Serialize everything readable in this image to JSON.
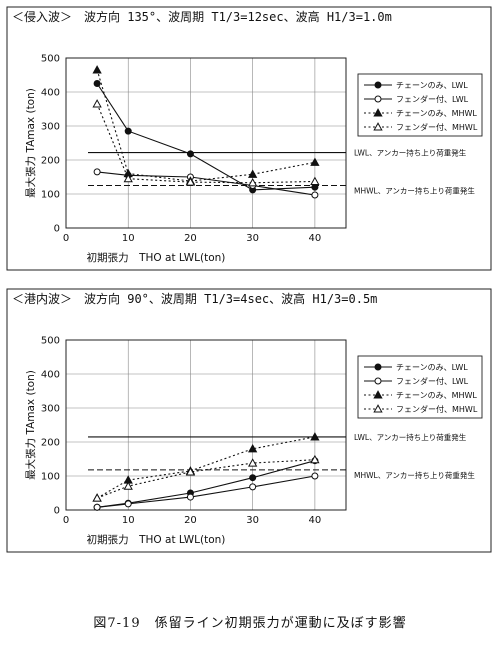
{
  "caption": "図7-19　係留ライン初期張力が運動に及ぼす影響",
  "chart_data": [
    {
      "type": "line",
      "header": "＜侵入波＞　波方向 135°、波周期 T1/3=12sec、波高 H1/3=1.0m",
      "xlabel": "初期張力　THO at LWL(ton)",
      "ylabel": "最大張力 TAmax (ton)",
      "xlim": [
        0,
        45
      ],
      "ylim": [
        0,
        500
      ],
      "xticks": [
        0,
        10,
        20,
        30,
        40
      ],
      "yticks": [
        0,
        100,
        200,
        300,
        400,
        500
      ],
      "grid": true,
      "legend_position": "top-right",
      "series": [
        {
          "name": "チェーンのみ、LWL",
          "style": "solid",
          "marker": "filled-circle",
          "x": [
            5,
            10,
            20,
            30,
            40
          ],
          "y": [
            425,
            285,
            218,
            112,
            120
          ]
        },
        {
          "name": "フェンダー付、LWL",
          "style": "solid",
          "marker": "open-circle",
          "x": [
            5,
            10,
            20,
            30,
            40
          ],
          "y": [
            165,
            155,
            150,
            125,
            97
          ]
        },
        {
          "name": "チェーンのみ、MHWL",
          "style": "dotted",
          "marker": "filled-triangle",
          "x": [
            5,
            10,
            20,
            30,
            40
          ],
          "y": [
            465,
            160,
            138,
            158,
            193
          ]
        },
        {
          "name": "フェンダー付、MHWL",
          "style": "dotted",
          "marker": "open-triangle",
          "x": [
            5,
            10,
            20,
            30,
            40
          ],
          "y": [
            365,
            145,
            135,
            133,
            137
          ]
        }
      ],
      "reference_lines": [
        {
          "label": "LWL、アンカー持ち上り荷重発生",
          "y": 222,
          "style": "solid"
        },
        {
          "label": "MHWL、アンカー持ち上り荷重発生",
          "y": 125,
          "style": "dashed"
        }
      ]
    },
    {
      "type": "line",
      "header": "＜港内波＞　波方向 90°、波周期 T1/3=4sec、波高 H1/3=0.5m",
      "xlabel": "初期張力　THO at LWL(ton)",
      "ylabel": "最大張力 TAmax (ton)",
      "xlim": [
        0,
        45
      ],
      "ylim": [
        0,
        500
      ],
      "xticks": [
        0,
        10,
        20,
        30,
        40
      ],
      "yticks": [
        0,
        100,
        200,
        300,
        400,
        500
      ],
      "grid": true,
      "legend_position": "top-right",
      "series": [
        {
          "name": "チェーンのみ、LWL",
          "style": "solid",
          "marker": "filled-circle",
          "x": [
            5,
            10,
            20,
            30,
            40
          ],
          "y": [
            8,
            20,
            50,
            95,
            145
          ]
        },
        {
          "name": "フェンダー付、LWL",
          "style": "solid",
          "marker": "open-circle",
          "x": [
            5,
            10,
            20,
            30,
            40
          ],
          "y": [
            8,
            18,
            38,
            68,
            100
          ]
        },
        {
          "name": "チェーンのみ、MHWL",
          "style": "dotted",
          "marker": "filled-triangle",
          "x": [
            5,
            10,
            20,
            30,
            40
          ],
          "y": [
            35,
            88,
            115,
            180,
            215
          ]
        },
        {
          "name": "フェンダー付、MHWL",
          "style": "dotted",
          "marker": "open-triangle",
          "x": [
            5,
            10,
            20,
            30,
            40
          ],
          "y": [
            35,
            70,
            112,
            138,
            148
          ]
        }
      ],
      "reference_lines": [
        {
          "label": "LWL、アンカー持ち上り荷重発生",
          "y": 215,
          "style": "solid"
        },
        {
          "label": "MHWL、アンカー持ち上り荷重発生",
          "y": 118,
          "style": "dashed"
        }
      ]
    }
  ]
}
